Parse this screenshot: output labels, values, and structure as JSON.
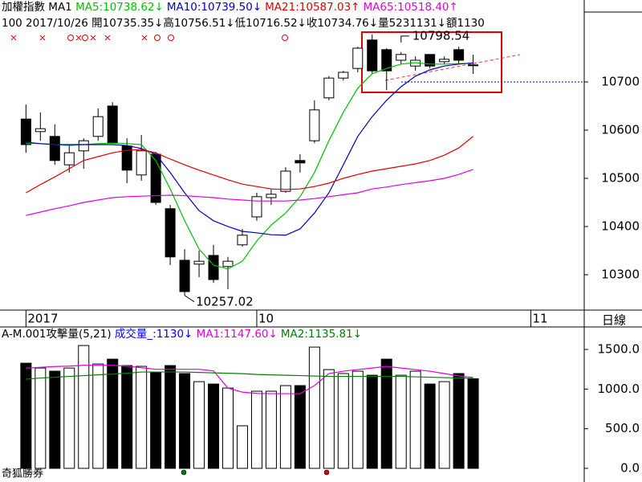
{
  "header": {
    "info": "100 2017/10/26 開10735.35↓高10756.51↓低10716.52↓收10734.76↓量5231131↓額1130",
    "title": "加權指數 MA1",
    "period": "日線",
    "brand": "奇狐勝券"
  },
  "chart_data": [
    {
      "type": "candlestick",
      "xlim": [
        -1.8,
        38.7
      ],
      "xticks": [
        {
          "value": 0,
          "label": "2017"
        },
        {
          "value": 16,
          "label": "10"
        },
        {
          "value": 35,
          "label": "11"
        }
      ],
      "ylim": [
        10228.3,
        10870
      ],
      "yticks": [
        10300,
        10400,
        10500,
        10600,
        10700
      ],
      "open": [
        10623,
        10597,
        10587,
        10528,
        10557,
        10587,
        10650,
        10567,
        10507,
        10550,
        10437,
        10330,
        10322,
        10340,
        10317,
        10362,
        10420,
        10460,
        10473,
        10537,
        10578,
        10667,
        10708,
        10728,
        10787,
        10767,
        10745,
        10733,
        10757,
        10742,
        10767,
        10735.35
      ],
      "high": [
        10653,
        10637,
        10612,
        10570,
        10583,
        10645,
        10658,
        10583,
        10590,
        10555,
        10445,
        10353,
        10350,
        10362,
        10337,
        10395,
        10470,
        10478,
        10523,
        10550,
        10662,
        10712,
        10723,
        10773,
        10798.54,
        10770,
        10762,
        10753,
        10757,
        10753,
        10773,
        10756.51
      ],
      "low": [
        10553,
        10578,
        10528,
        10512,
        10520,
        10578,
        10573,
        10490,
        10495,
        10445,
        10320,
        10257.02,
        10295,
        10283,
        10270,
        10358,
        10412,
        10445,
        10470,
        10512,
        10573,
        10662,
        10703,
        10720,
        10717,
        10683,
        10737,
        10723,
        10728,
        10737,
        10737,
        10716.52
      ],
      "close": [
        10570,
        10603,
        10537,
        10553,
        10578,
        10628,
        10573,
        10517,
        10557,
        10450,
        10337,
        10265,
        10328,
        10290,
        10328,
        10382,
        10462,
        10467,
        10515,
        10532,
        10642,
        10708,
        10720,
        10770,
        10723,
        10723,
        10757,
        10745,
        10733,
        10747,
        10745,
        10734.76
      ],
      "series": [
        {
          "name": "MA5:10738.62↓",
          "color": "#00c000",
          "values": [
            10573,
            10572,
            10570,
            10568,
            10570,
            10572,
            10573,
            10572,
            10570,
            10537,
            10478,
            10412,
            10353,
            10320,
            10312,
            10328,
            10370,
            10403,
            10428,
            10462,
            10512,
            10578,
            10637,
            10687,
            10717,
            10728,
            10737,
            10740,
            10737,
            10737,
            10738,
            10738.62
          ]
        },
        {
          "name": "MA10:10739.50↓",
          "color": "#0000c0",
          "values": [
            10575,
            10572,
            10570,
            10570,
            10570,
            10570,
            10570,
            10568,
            10562,
            10550,
            10512,
            10470,
            10433,
            10412,
            10400,
            10390,
            10387,
            10383,
            10382,
            10395,
            10428,
            10470,
            10528,
            10587,
            10628,
            10662,
            10690,
            10712,
            10725,
            10733,
            10737,
            10739.5
          ]
        },
        {
          "name": "MA21:10587.03↑",
          "color": "#e00000",
          "values": [
            10470,
            10487,
            10503,
            10520,
            10537,
            10545,
            10553,
            10558,
            10560,
            10553,
            10540,
            10528,
            10517,
            10507,
            10497,
            10488,
            10483,
            10478,
            10477,
            10478,
            10483,
            10490,
            10500,
            10508,
            10515,
            10520,
            10525,
            10530,
            10537,
            10548,
            10563,
            10587.03
          ]
        },
        {
          "name": "MA65:10518.40↑",
          "color": "#e000e0",
          "values": [
            10423,
            10430,
            10437,
            10443,
            10450,
            10455,
            10460,
            10462,
            10463,
            10464,
            10465,
            10464,
            10462,
            10460,
            10457,
            10455,
            10453,
            10453,
            10453,
            10455,
            10458,
            10462,
            10466,
            10470,
            10478,
            10482,
            10487,
            10491,
            10495,
            10500,
            10508,
            10518.4
          ]
        }
      ],
      "annotations": [
        "10257.02",
        "10798.54"
      ]
    },
    {
      "type": "volume",
      "title": "A-M.001攻擊量(5,21)",
      "volume_label": "成交量_:1130↓",
      "xlim": [
        -1.8,
        38.7
      ],
      "ylim": [
        -152,
        1774
      ],
      "yticks": [
        {
          "value": 0,
          "label": "0.0"
        },
        {
          "value": 500,
          "label": "500.0"
        },
        {
          "value": 1000,
          "label": "1000.0"
        },
        {
          "value": 1500,
          "label": "1500.0"
        }
      ],
      "values": [
        1327,
        1266,
        1226,
        1266,
        1550,
        1317,
        1378,
        1297,
        1287,
        1216,
        1297,
        1196,
        1094,
        1064,
        1013,
        537,
        973,
        973,
        1044,
        1044,
        1530,
        1246,
        1196,
        1226,
        1175,
        1378,
        1175,
        1226,
        1064,
        1094,
        1196,
        1130
      ],
      "series": [
        {
          "name": "MA1:1147.60↓",
          "color": "#e000e0",
          "values": [
            1266,
            1275,
            1285,
            1290,
            1300,
            1300,
            1300,
            1290,
            1270,
            1250,
            1250,
            1250,
            1250,
            1230,
            1013,
            962,
            945,
            942,
            942,
            942,
            1044,
            1196,
            1226,
            1246,
            1266,
            1286,
            1266,
            1246,
            1226,
            1196,
            1166,
            1147.6
          ]
        },
        {
          "name": "MA2:1135.81↓",
          "color": "#008000",
          "values": [
            1125,
            1140,
            1150,
            1160,
            1170,
            1180,
            1190,
            1200,
            1216,
            1216,
            1216,
            1216,
            1210,
            1205,
            1200,
            1195,
            1185,
            1180,
            1175,
            1170,
            1165,
            1160,
            1160,
            1160,
            1160,
            1160,
            1160,
            1155,
            1150,
            1145,
            1140,
            1135.81
          ]
        }
      ]
    }
  ]
}
